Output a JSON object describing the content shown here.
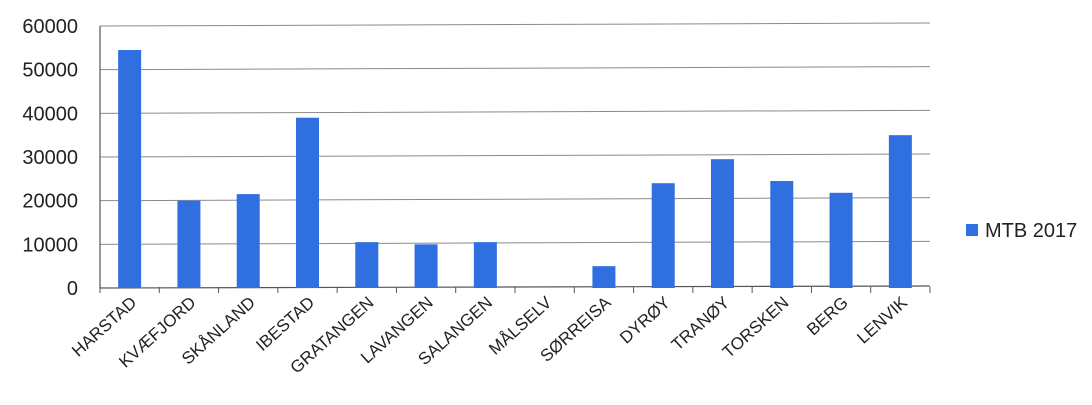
{
  "chart_data": {
    "type": "bar",
    "categories": [
      "HARSTAD",
      "KVÆFJORD",
      "SKÅNLAND",
      "IBESTAD",
      "GRATANGEN",
      "LAVANGEN",
      "SALANGEN",
      "MÅLSELV",
      "SØRREISA",
      "DYRØY",
      "TRANØY",
      "TORSKEN",
      "BERG",
      "LENVIK"
    ],
    "series": [
      {
        "name": "MTB 2017",
        "values": [
          54500,
          20000,
          21500,
          39000,
          10500,
          10000,
          10500,
          0,
          5000,
          24000,
          29500,
          24500,
          21800,
          35000
        ]
      }
    ],
    "yticks": [
      0,
      10000,
      20000,
      30000,
      40000,
      50000,
      60000
    ],
    "ylim": [
      0,
      60000
    ],
    "grid": true,
    "legend_position": "right",
    "colors": {
      "bar": "#2f6fe0",
      "grid": "#8a8a8a",
      "axis": "#555555"
    }
  }
}
